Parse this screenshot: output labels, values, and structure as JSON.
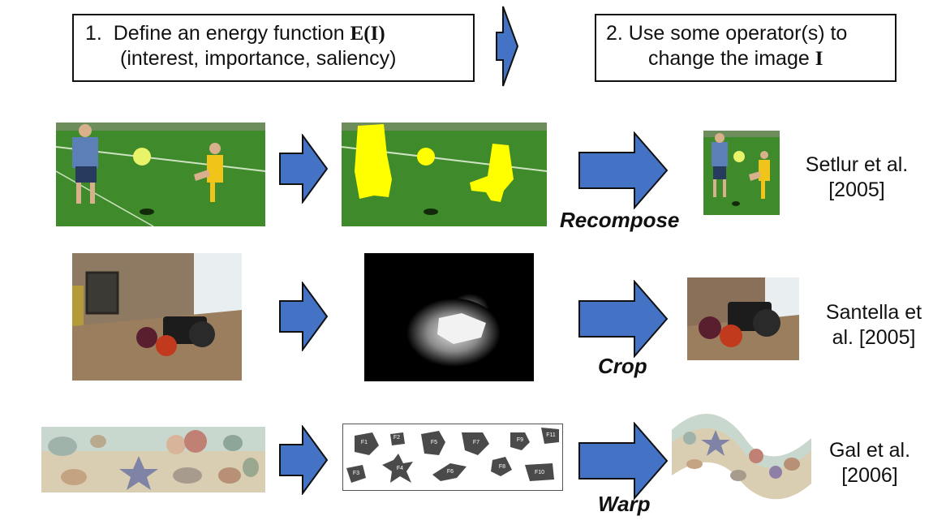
{
  "steps": {
    "step1": {
      "line1_prefix": "1.  Define an energy function ",
      "line1_formula": "E(I)",
      "line2": "(interest, importance, saliency)"
    },
    "step2": {
      "line1": "2. Use some operator(s) to",
      "line2_prefix": "change the image ",
      "line2_formula": "I"
    }
  },
  "rows": [
    {
      "operator": "Recompose",
      "ref_line1": "Setlur et al.",
      "ref_line2": "[2005]"
    },
    {
      "operator": "Crop",
      "ref_line1": "Santella et",
      "ref_line2": "al. [2005]"
    },
    {
      "operator": "Warp",
      "ref_line1": "Gal et al.",
      "ref_line2": "[2006]"
    }
  ],
  "features": [
    "F1",
    "F2",
    "F3",
    "F4",
    "F5",
    "F6",
    "F7",
    "F8",
    "F9",
    "F10",
    "F11"
  ],
  "colors": {
    "arrow_fill": "#4472C4",
    "saliency_yellow": "#FFFF00",
    "grass": "#3f8a2a"
  }
}
